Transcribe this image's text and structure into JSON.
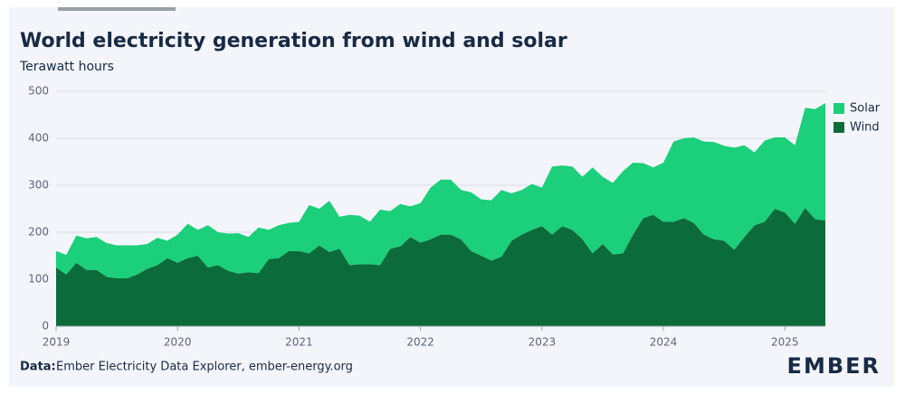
{
  "chart_data": {
    "type": "stacked-area",
    "title": "World electricity generation from wind and solar",
    "subtitle": "Terawatt hours",
    "source_label": "Data:",
    "source": "Ember Electricity Data Explorer, ember-energy.org",
    "logo": "EMBER",
    "categories": [
      "2019",
      null,
      null,
      null,
      null,
      null,
      null,
      null,
      null,
      null,
      null,
      null,
      "2020",
      null,
      null,
      null,
      null,
      null,
      null,
      null,
      null,
      null,
      null,
      null,
      "2021",
      null,
      null,
      null,
      null,
      null,
      null,
      null,
      null,
      null,
      null,
      null,
      "2022",
      null,
      null,
      null,
      null,
      null,
      null,
      null,
      null,
      null,
      null,
      null,
      "2023",
      null,
      null,
      null,
      null,
      null,
      null,
      null,
      null,
      null,
      null,
      null,
      "2024",
      null,
      null,
      null,
      null,
      null,
      null,
      null,
      null,
      null,
      null,
      null,
      "2025",
      null,
      null,
      null,
      null
    ],
    "series": [
      {
        "name": "Wind",
        "color": "#0b6b3a",
        "values": [
          125,
          110,
          135,
          120,
          120,
          105,
          102,
          102,
          110,
          122,
          130,
          145,
          135,
          145,
          150,
          125,
          130,
          118,
          112,
          115,
          113,
          143,
          145,
          160,
          160,
          155,
          172,
          158,
          165,
          130,
          132,
          132,
          130,
          165,
          170,
          190,
          178,
          185,
          195,
          195,
          185,
          160,
          150,
          140,
          148,
          182,
          195,
          205,
          213,
          195,
          213,
          205,
          185,
          155,
          175,
          153,
          155,
          195,
          230,
          237,
          222,
          222,
          230,
          220,
          195,
          185,
          182,
          163,
          190,
          215,
          222,
          250,
          242,
          218,
          252,
          228,
          225
        ]
      },
      {
        "name": "Solar",
        "color": "#1ccf7a",
        "values": [
          35,
          42,
          58,
          67,
          70,
          72,
          70,
          70,
          62,
          53,
          58,
          37,
          60,
          73,
          55,
          90,
          70,
          79,
          86,
          75,
          97,
          62,
          70,
          60,
          62,
          103,
          78,
          109,
          68,
          107,
          103,
          90,
          118,
          80,
          90,
          65,
          84,
          110,
          117,
          117,
          105,
          125,
          120,
          128,
          142,
          101,
          95,
          98,
          82,
          145,
          129,
          135,
          133,
          183,
          143,
          152,
          175,
          153,
          117,
          101,
          126,
          171,
          170,
          182,
          198,
          207,
          202,
          217,
          195,
          155,
          173,
          152,
          160,
          167,
          213,
          234,
          250
        ]
      }
    ],
    "ylim": [
      0,
      500
    ],
    "yticks": [
      0,
      100,
      200,
      300,
      400,
      500
    ],
    "grid": true,
    "legend": "right"
  }
}
